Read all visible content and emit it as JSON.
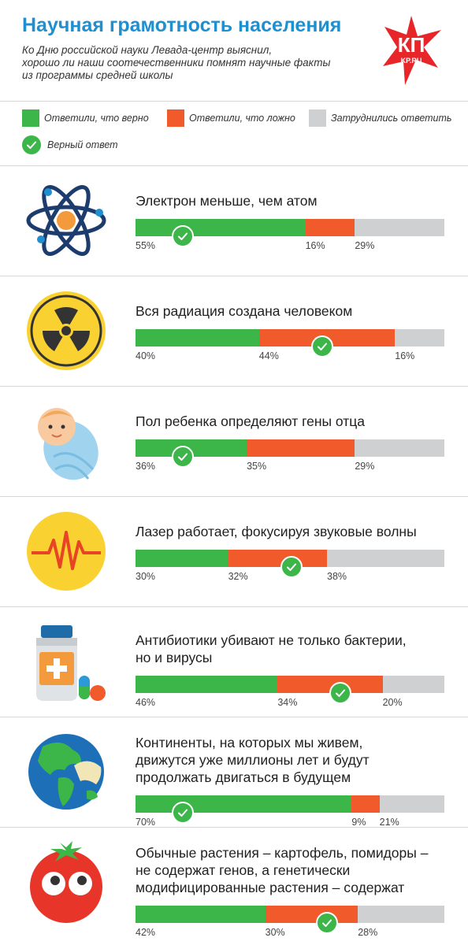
{
  "header": {
    "title": "Научная грамотность населения",
    "subtitle_lines": [
      "Ко Дню российской науки Левада-центр выяснил,",
      "хорошо ли наши соотечественники помнят научные факты",
      "из программы средней школы"
    ],
    "logo_text": "КП",
    "logo_sub": "KP.RU"
  },
  "legend": {
    "true_label": "Ответили, что верно",
    "false_label": "Ответили, что ложно",
    "unsure_label": "Затруднились ответить",
    "correct_label": "Верный ответ"
  },
  "colors": {
    "title": "#1f8fcf",
    "true": "#3cb549",
    "false": "#f15a2b",
    "unsure": "#cfd0d2"
  },
  "chart_data": {
    "type": "bar",
    "stacked": true,
    "orientation": "horizontal",
    "value_unit": "%",
    "series_names": [
      "Ответили, что верно",
      "Ответили, что ложно",
      "Затруднились ответить"
    ],
    "questions": [
      {
        "icon": "atom-icon",
        "lines": [
          "Электрон меньше, чем атом"
        ],
        "values": [
          55,
          16,
          29
        ],
        "labels": [
          "55%",
          "16%",
          "29%"
        ],
        "correct": "true"
      },
      {
        "icon": "radiation-icon",
        "lines": [
          "Вся радиация создана человеком"
        ],
        "values": [
          40,
          44,
          16
        ],
        "labels": [
          "40%",
          "44%",
          "16%"
        ],
        "correct": "false"
      },
      {
        "icon": "baby-icon",
        "lines": [
          "Пол ребенка определяют гены отца"
        ],
        "values": [
          36,
          35,
          29
        ],
        "labels": [
          "36%",
          "35%",
          "29%"
        ],
        "correct": "true"
      },
      {
        "icon": "laser-wave-icon",
        "lines": [
          "Лазер работает, фокусируя звуковые волны"
        ],
        "values": [
          30,
          32,
          38
        ],
        "labels": [
          "30%",
          "32%",
          "38%"
        ],
        "correct": "false"
      },
      {
        "icon": "pill-bottle-icon",
        "lines": [
          "Антибиотики убивают не только бактерии,",
          "но и вирусы"
        ],
        "values": [
          46,
          34,
          20
        ],
        "labels": [
          "46%",
          "34%",
          "20%"
        ],
        "correct": "false"
      },
      {
        "icon": "globe-icon",
        "lines": [
          "Континенты, на которых мы живем,",
          "движутся уже миллионы лет и будут",
          "продолжать двигаться в будущем"
        ],
        "values": [
          70,
          9,
          21
        ],
        "labels": [
          "70%",
          "9%",
          "21%"
        ],
        "correct": "true"
      },
      {
        "icon": "tomato-icon",
        "lines": [
          "Обычные растения – картофель, помидоры –",
          "не содержат генов, а генетически",
          "модифицированные растения – содержат"
        ],
        "values": [
          42,
          30,
          28
        ],
        "labels": [
          "42%",
          "30%",
          "28%"
        ],
        "correct": "false"
      }
    ]
  }
}
